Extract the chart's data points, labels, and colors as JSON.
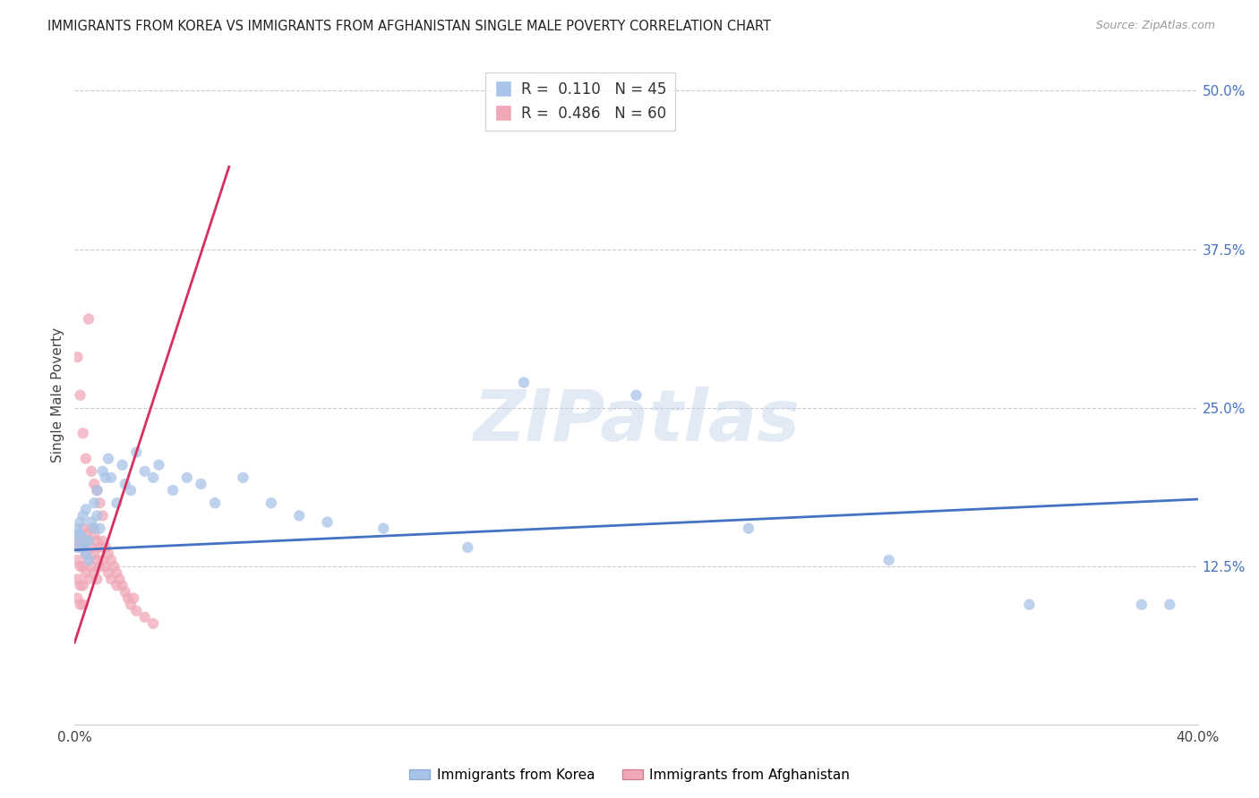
{
  "title": "IMMIGRANTS FROM KOREA VS IMMIGRANTS FROM AFGHANISTAN SINGLE MALE POVERTY CORRELATION CHART",
  "source": "Source: ZipAtlas.com",
  "ylabel": "Single Male Poverty",
  "legend_label1": "Immigrants from Korea",
  "legend_label2": "Immigrants from Afghanistan",
  "R1": 0.11,
  "N1": 45,
  "R2": 0.486,
  "N2": 60,
  "color1": "#a8c4e8",
  "color2": "#f0a8b8",
  "line_color1": "#4472c4",
  "line_color2": "#d63060",
  "watermark_text": "ZIPatlas",
  "xlim": [
    0.0,
    0.4
  ],
  "ylim": [
    0.0,
    0.52
  ],
  "right_yticks": [
    0.125,
    0.25,
    0.375,
    0.5
  ],
  "right_ytick_labels": [
    "12.5%",
    "25.0%",
    "37.5%",
    "50.0%"
  ],
  "korea_line_x": [
    0.0,
    0.4
  ],
  "korea_line_y": [
    0.138,
    0.178
  ],
  "afghan_line_x": [
    0.0,
    0.055
  ],
  "afghan_line_y": [
    0.065,
    0.44
  ],
  "korea_x": [
    0.001,
    0.001,
    0.002,
    0.002,
    0.003,
    0.003,
    0.004,
    0.004,
    0.005,
    0.005,
    0.006,
    0.007,
    0.007,
    0.008,
    0.008,
    0.009,
    0.01,
    0.011,
    0.012,
    0.013,
    0.015,
    0.017,
    0.018,
    0.02,
    0.022,
    0.025,
    0.028,
    0.03,
    0.035,
    0.04,
    0.045,
    0.05,
    0.06,
    0.07,
    0.08,
    0.09,
    0.11,
    0.14,
    0.16,
    0.2,
    0.24,
    0.29,
    0.34,
    0.38,
    0.39
  ],
  "korea_y": [
    0.145,
    0.155,
    0.15,
    0.16,
    0.14,
    0.165,
    0.135,
    0.17,
    0.13,
    0.145,
    0.16,
    0.175,
    0.155,
    0.185,
    0.165,
    0.155,
    0.2,
    0.195,
    0.21,
    0.195,
    0.175,
    0.205,
    0.19,
    0.185,
    0.215,
    0.2,
    0.195,
    0.205,
    0.185,
    0.195,
    0.19,
    0.175,
    0.195,
    0.175,
    0.165,
    0.16,
    0.155,
    0.14,
    0.27,
    0.26,
    0.155,
    0.13,
    0.095,
    0.095,
    0.095
  ],
  "korea_sizes": [
    350,
    80,
    80,
    80,
    80,
    80,
    80,
    80,
    80,
    80,
    80,
    80,
    80,
    80,
    80,
    80,
    80,
    80,
    80,
    80,
    80,
    80,
    80,
    80,
    80,
    80,
    80,
    80,
    80,
    80,
    80,
    80,
    80,
    80,
    80,
    80,
    80,
    80,
    80,
    80,
    80,
    80,
    80,
    80,
    80
  ],
  "afghan_x": [
    0.001,
    0.001,
    0.001,
    0.001,
    0.002,
    0.002,
    0.002,
    0.002,
    0.003,
    0.003,
    0.003,
    0.003,
    0.003,
    0.004,
    0.004,
    0.004,
    0.005,
    0.005,
    0.005,
    0.006,
    0.006,
    0.006,
    0.007,
    0.007,
    0.007,
    0.008,
    0.008,
    0.008,
    0.009,
    0.009,
    0.01,
    0.01,
    0.011,
    0.011,
    0.012,
    0.012,
    0.013,
    0.013,
    0.014,
    0.015,
    0.015,
    0.016,
    0.017,
    0.018,
    0.019,
    0.02,
    0.021,
    0.022,
    0.025,
    0.028,
    0.001,
    0.002,
    0.003,
    0.004,
    0.005,
    0.006,
    0.007,
    0.008,
    0.009,
    0.01
  ],
  "afghan_y": [
    0.145,
    0.13,
    0.115,
    0.1,
    0.14,
    0.125,
    0.11,
    0.095,
    0.155,
    0.14,
    0.125,
    0.11,
    0.095,
    0.15,
    0.135,
    0.12,
    0.145,
    0.13,
    0.115,
    0.155,
    0.14,
    0.125,
    0.15,
    0.135,
    0.12,
    0.145,
    0.13,
    0.115,
    0.14,
    0.125,
    0.145,
    0.13,
    0.14,
    0.125,
    0.135,
    0.12,
    0.13,
    0.115,
    0.125,
    0.12,
    0.11,
    0.115,
    0.11,
    0.105,
    0.1,
    0.095,
    0.1,
    0.09,
    0.085,
    0.08,
    0.29,
    0.26,
    0.23,
    0.21,
    0.32,
    0.2,
    0.19,
    0.185,
    0.175,
    0.165
  ],
  "afghan_sizes": [
    80,
    80,
    80,
    80,
    80,
    80,
    80,
    80,
    80,
    80,
    80,
    80,
    80,
    80,
    80,
    80,
    80,
    80,
    80,
    80,
    80,
    80,
    80,
    80,
    80,
    80,
    80,
    80,
    80,
    80,
    80,
    80,
    80,
    80,
    80,
    80,
    80,
    80,
    80,
    80,
    80,
    80,
    80,
    80,
    80,
    80,
    80,
    80,
    80,
    80,
    80,
    80,
    80,
    80,
    80,
    80,
    80,
    80,
    80,
    80
  ]
}
